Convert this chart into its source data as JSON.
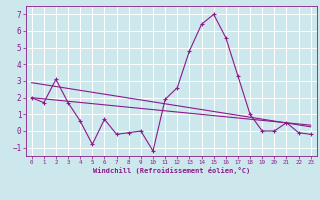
{
  "xlabel": "Windchill (Refroidissement éolien,°C)",
  "background_color": "#cce8ec",
  "line_color": "#8b1a8b",
  "xlim": [
    -0.5,
    23.5
  ],
  "ylim": [
    -1.5,
    7.5
  ],
  "xticks": [
    0,
    1,
    2,
    3,
    4,
    5,
    6,
    7,
    8,
    9,
    10,
    11,
    12,
    13,
    14,
    15,
    16,
    17,
    18,
    19,
    20,
    21,
    22,
    23
  ],
  "yticks": [
    -1,
    0,
    1,
    2,
    3,
    4,
    5,
    6,
    7
  ],
  "curve1_x": [
    0,
    1,
    2,
    3,
    4,
    5,
    6,
    7,
    8,
    9,
    10,
    11,
    12,
    13,
    14,
    15,
    16,
    17,
    18,
    19,
    20,
    21,
    22,
    23
  ],
  "curve1_y": [
    2.0,
    1.7,
    3.1,
    1.7,
    0.6,
    -0.8,
    0.7,
    -0.2,
    -0.1,
    0.0,
    -1.2,
    1.9,
    2.6,
    4.8,
    6.4,
    7.0,
    5.6,
    3.3,
    1.0,
    0.0,
    0.0,
    0.5,
    -0.1,
    -0.2
  ],
  "trend1_x": [
    0,
    23
  ],
  "trend1_y": [
    2.0,
    0.35
  ],
  "trend2_x": [
    0,
    23
  ],
  "trend2_y": [
    2.9,
    0.25
  ]
}
